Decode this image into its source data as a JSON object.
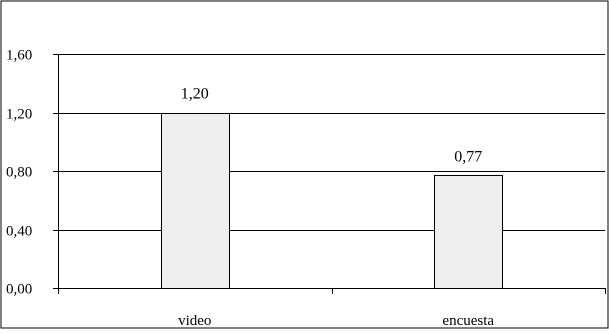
{
  "chart_data": {
    "type": "bar",
    "categories": [
      "video",
      "encuesta"
    ],
    "values": [
      1.2,
      0.77
    ],
    "value_labels": [
      "1,20",
      "0,77"
    ],
    "y_tick_values": [
      0,
      0.4,
      0.8,
      1.2,
      1.6
    ],
    "y_tick_labels": [
      "0,00",
      "0,40",
      "0,80",
      "1,20",
      "1,60"
    ],
    "ylim": [
      0,
      1.6
    ],
    "grid": true,
    "legend": "none",
    "title": "",
    "xlabel": "",
    "ylabel": "",
    "colors": {
      "bar_fill": "#efefef",
      "bar_stroke": "#000000",
      "grid": "#000000",
      "frame": "#000000",
      "background": "#ffffff"
    }
  }
}
